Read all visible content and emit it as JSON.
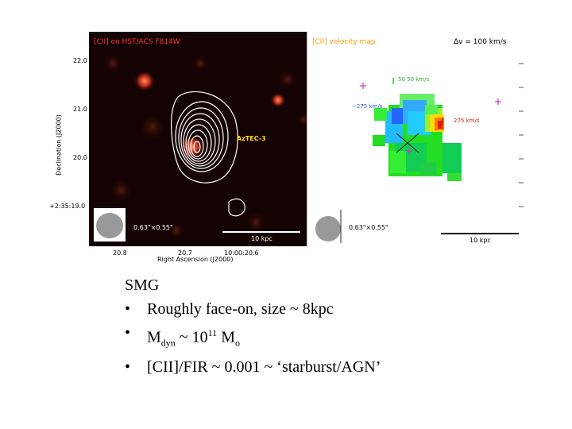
{
  "figure": {
    "left_panel": {
      "title": "[CII] on HST/ACS F814W",
      "source_label": "AzTEC-3",
      "beam_label": "0.63\"×0.55\"",
      "scalebar_label": "10 kpc",
      "y_axis_title": "Declination (J2000)",
      "x_axis_title": "Right Ascension (J2000)",
      "y_ticks": [
        "22.0",
        "21.0",
        "20.0",
        "+2:35:19.0"
      ],
      "x_ticks": [
        "20.8",
        "20.7",
        "10:00:20.6"
      ]
    },
    "right_panel": {
      "title": "[CII] velocity map",
      "delta_v": "Δv = 100 km/s",
      "vel_zero": "50  50 km/s",
      "vel_neg": "−275 km/s",
      "vel_pos": "275 km/s",
      "beam_label": "0.63\"×0.55\"",
      "scalebar_label": "10 kpc"
    },
    "colors": {
      "title_left": "#ff3333",
      "title_right": "#ff9900",
      "contour": "#ffffff",
      "label_yellow": "#ffd700",
      "marker_magenta": "#cc33cc"
    }
  },
  "slide": {
    "heading": "SMG",
    "bullet_char": "•",
    "bullets": {
      "b1": "Roughly face-on, size ~ 8kpc",
      "b2_prefix": "M",
      "b2_sub": "dyn",
      "b2_mid": " ~ 10",
      "b2_sup": "11",
      "b2_suffix": " M",
      "b2_sub2": "o",
      "b3": "[CII]/FIR  ~ 0.001 ~ ‘starburst/AGN’"
    }
  }
}
